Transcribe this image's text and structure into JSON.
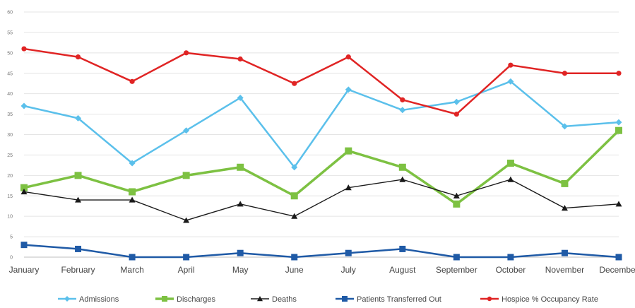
{
  "chart_data": {
    "type": "line",
    "title": "",
    "xlabel": "",
    "ylabel": "",
    "ylim": [
      0,
      60
    ],
    "yticks": [
      0,
      5,
      10,
      15,
      20,
      25,
      30,
      35,
      40,
      45,
      50,
      55,
      60
    ],
    "grid": true,
    "legend_position": "bottom",
    "categories": [
      "January",
      "February",
      "March",
      "April",
      "May",
      "June",
      "July",
      "August",
      "September",
      "October",
      "November",
      "December"
    ],
    "series": [
      {
        "name": "Admissions",
        "color": "#5bc0eb",
        "marker": "diamond",
        "values": [
          37,
          34,
          23,
          31,
          39,
          22,
          41,
          36,
          38,
          43,
          32,
          33
        ]
      },
      {
        "name": "Discharges",
        "color": "#7dc142",
        "marker": "square",
        "values": [
          17,
          20,
          16,
          20,
          22,
          15,
          26,
          22,
          13,
          23,
          18,
          31
        ]
      },
      {
        "name": "Deaths",
        "color": "#1a1a1a",
        "marker": "triangle",
        "values": [
          16,
          14,
          14,
          9,
          13,
          10,
          17,
          19,
          15,
          19,
          12,
          13
        ]
      },
      {
        "name": "Patients Transferred Out",
        "color": "#1f5aa6",
        "marker": "square",
        "values": [
          3,
          2,
          0,
          0,
          1,
          0,
          1,
          2,
          0,
          0,
          1,
          0
        ]
      },
      {
        "name": "Hospice % Occupancy Rate",
        "color": "#e02424",
        "marker": "circle",
        "values": [
          51,
          49,
          43,
          50,
          48.5,
          42.5,
          49,
          38.5,
          35,
          47,
          45,
          45
        ]
      }
    ]
  }
}
